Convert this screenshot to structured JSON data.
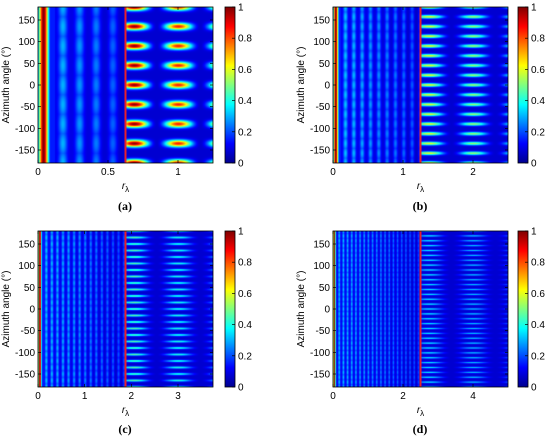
{
  "chart_data": [
    {
      "type": "heatmap",
      "caption": "(a)",
      "xlabel_main": "r",
      "xlabel_sub": "λ",
      "ylabel": "Azimuth angle (°)",
      "xlim": [
        0,
        1.25
      ],
      "ylim": [
        -180,
        180
      ],
      "xticks": [
        0,
        0.5,
        1
      ],
      "xticklabels": [
        "0",
        "0.5",
        "1"
      ],
      "yticks": [
        -150,
        -100,
        -50,
        0,
        50,
        100,
        150
      ],
      "yticklabels": [
        "-150",
        "-100",
        "-50",
        "0",
        "50",
        "100",
        "150"
      ],
      "boundary_x": 0.625,
      "lobes": 8,
      "bright_band_x": 0.04,
      "colorbar": {
        "range": [
          0,
          1
        ],
        "ticks": [
          "0",
          "0.2",
          "0.4",
          "0.6",
          "0.8",
          "1"
        ]
      }
    },
    {
      "type": "heatmap",
      "caption": "(b)",
      "xlabel_main": "r",
      "xlabel_sub": "λ",
      "ylabel": "Azimuth angle (°)",
      "xlim": [
        0,
        2.5
      ],
      "ylim": [
        -180,
        180
      ],
      "xticks": [
        0,
        1,
        2
      ],
      "xticklabels": [
        "0",
        "1",
        "2"
      ],
      "yticks": [
        -150,
        -100,
        -50,
        0,
        50,
        100,
        150
      ],
      "yticklabels": [
        "-150",
        "-100",
        "-50",
        "0",
        "50",
        "100",
        "150"
      ],
      "boundary_x": 1.25,
      "lobes": 16,
      "bright_band_x": 0.04,
      "colorbar": {
        "range": [
          0,
          1
        ],
        "ticks": [
          "0",
          "0.2",
          "0.4",
          "0.6",
          "0.8",
          "1"
        ]
      }
    },
    {
      "type": "heatmap",
      "caption": "(c)",
      "xlabel_main": "r",
      "xlabel_sub": "λ",
      "ylabel": "Azimuth angle (°)",
      "xlim": [
        0,
        3.75
      ],
      "ylim": [
        -180,
        180
      ],
      "xticks": [
        0,
        1,
        2,
        3
      ],
      "xticklabels": [
        "0",
        "1",
        "2",
        "3"
      ],
      "yticks": [
        -150,
        -100,
        -50,
        0,
        50,
        100,
        150
      ],
      "yticklabels": [
        "-150",
        "-100",
        "-50",
        "0",
        "50",
        "100",
        "150"
      ],
      "boundary_x": 1.875,
      "lobes": 24,
      "bright_band_x": 0.04,
      "colorbar": {
        "range": [
          0,
          1
        ],
        "ticks": [
          "0",
          "0.2",
          "0.4",
          "0.6",
          "0.8",
          "1"
        ]
      }
    },
    {
      "type": "heatmap",
      "caption": "(d)",
      "xlabel_main": "r",
      "xlabel_sub": "λ",
      "ylabel": "Azimuth angle (°)",
      "xlim": [
        0,
        5.0
      ],
      "ylim": [
        -180,
        180
      ],
      "xticks": [
        0,
        2,
        4
      ],
      "xticklabels": [
        "0",
        "2",
        "4"
      ],
      "yticks": [
        -150,
        -100,
        -50,
        0,
        50,
        100,
        150
      ],
      "yticklabels": [
        "-150",
        "-100",
        "-50",
        "0",
        "50",
        "100",
        "150"
      ],
      "boundary_x": 2.5,
      "lobes": 32,
      "bright_band_x": 0.04,
      "colorbar": {
        "range": [
          0,
          1
        ],
        "ticks": [
          "0",
          "0.2",
          "0.4",
          "0.6",
          "0.8",
          "1"
        ]
      }
    }
  ],
  "colors": {
    "boundary_line": "#e8202a",
    "colormap": "jet"
  }
}
